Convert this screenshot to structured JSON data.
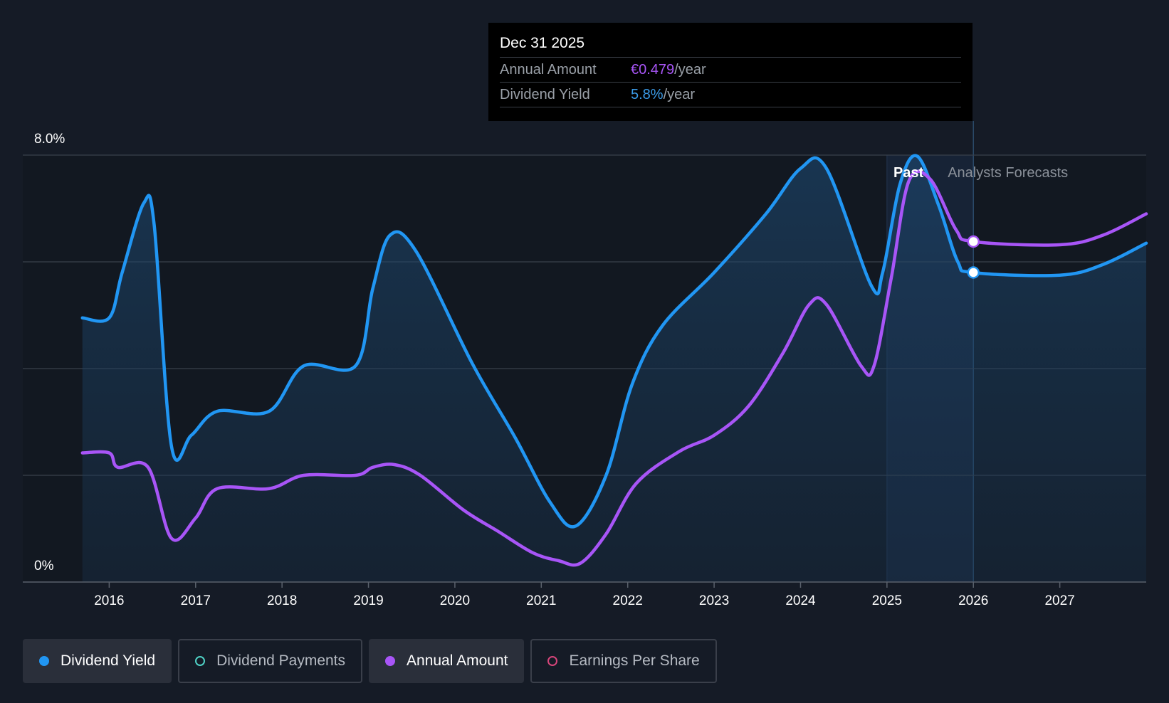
{
  "tooltip": {
    "date": "Dec 31 2025",
    "rows": [
      {
        "label": "Annual Amount",
        "value": "€0.479",
        "suffix": "/year",
        "color": "#a855f7"
      },
      {
        "label": "Dividend Yield",
        "value": "5.8%",
        "suffix": "/year",
        "color": "#3b9be8"
      }
    ]
  },
  "regions": {
    "past": "Past",
    "forecast": "Analysts Forecasts"
  },
  "legend": [
    {
      "label": "Dividend Yield",
      "color": "#2196f3",
      "active": true,
      "filled": true
    },
    {
      "label": "Dividend Payments",
      "color": "#4fd1c5",
      "active": false,
      "filled": false
    },
    {
      "label": "Annual Amount",
      "color": "#a855f7",
      "active": true,
      "filled": true
    },
    {
      "label": "Earnings Per Share",
      "color": "#d6457a",
      "active": false,
      "filled": false
    }
  ],
  "chart_data": {
    "type": "line",
    "x_ticks": [
      "2016",
      "2017",
      "2018",
      "2019",
      "2020",
      "2021",
      "2022",
      "2023",
      "2024",
      "2025",
      "2026",
      "2027"
    ],
    "y_tick_labels": [
      "8.0%",
      "0%"
    ],
    "ylim": [
      0,
      8
    ],
    "xlim": [
      2015.0,
      2028.0
    ],
    "past_forecast_boundary": 2025.0,
    "highlight_x": 2026.0,
    "grid": true,
    "legend_position": "bottom",
    "series": [
      {
        "name": "Dividend Yield",
        "color": "#2196f3",
        "area": true,
        "points": [
          [
            2015.69,
            4.95
          ],
          [
            2016.0,
            4.95
          ],
          [
            2016.15,
            5.8
          ],
          [
            2016.4,
            7.1
          ],
          [
            2016.52,
            6.7
          ],
          [
            2016.72,
            2.55
          ],
          [
            2016.95,
            2.75
          ],
          [
            2017.25,
            3.2
          ],
          [
            2017.85,
            3.2
          ],
          [
            2018.25,
            4.05
          ],
          [
            2018.85,
            4.05
          ],
          [
            2019.05,
            5.5
          ],
          [
            2019.25,
            6.5
          ],
          [
            2019.55,
            6.2
          ],
          [
            2020.2,
            4.1
          ],
          [
            2020.7,
            2.7
          ],
          [
            2021.1,
            1.5
          ],
          [
            2021.4,
            1.05
          ],
          [
            2021.75,
            2.0
          ],
          [
            2022.05,
            3.7
          ],
          [
            2022.4,
            4.8
          ],
          [
            2023.0,
            5.8
          ],
          [
            2023.6,
            6.9
          ],
          [
            2024.0,
            7.75
          ],
          [
            2024.3,
            7.75
          ],
          [
            2024.82,
            5.55
          ],
          [
            2024.95,
            5.8
          ],
          [
            2025.15,
            7.45
          ],
          [
            2025.35,
            7.98
          ],
          [
            2025.6,
            7.05
          ],
          [
            2025.82,
            6.0
          ],
          [
            2026.0,
            5.8
          ],
          [
            2027.0,
            5.75
          ],
          [
            2027.5,
            5.95
          ],
          [
            2028.0,
            6.35
          ]
        ]
      },
      {
        "name": "Annual Amount",
        "color": "#a855f7",
        "area": false,
        "points": [
          [
            2015.69,
            2.42
          ],
          [
            2016.0,
            2.42
          ],
          [
            2016.1,
            2.15
          ],
          [
            2016.45,
            2.15
          ],
          [
            2016.72,
            0.82
          ],
          [
            2017.0,
            1.2
          ],
          [
            2017.25,
            1.75
          ],
          [
            2017.85,
            1.75
          ],
          [
            2018.25,
            2.0
          ],
          [
            2018.85,
            2.0
          ],
          [
            2019.05,
            2.15
          ],
          [
            2019.3,
            2.2
          ],
          [
            2019.6,
            2.0
          ],
          [
            2020.1,
            1.35
          ],
          [
            2020.5,
            0.95
          ],
          [
            2020.9,
            0.55
          ],
          [
            2021.2,
            0.4
          ],
          [
            2021.45,
            0.35
          ],
          [
            2021.75,
            0.9
          ],
          [
            2022.1,
            1.85
          ],
          [
            2022.6,
            2.45
          ],
          [
            2023.0,
            2.75
          ],
          [
            2023.4,
            3.3
          ],
          [
            2023.8,
            4.3
          ],
          [
            2024.1,
            5.2
          ],
          [
            2024.3,
            5.2
          ],
          [
            2024.7,
            4.05
          ],
          [
            2024.85,
            4.05
          ],
          [
            2025.05,
            5.7
          ],
          [
            2025.25,
            7.5
          ],
          [
            2025.5,
            7.55
          ],
          [
            2025.8,
            6.6
          ],
          [
            2026.0,
            6.38
          ],
          [
            2027.0,
            6.32
          ],
          [
            2027.5,
            6.5
          ],
          [
            2028.0,
            6.9
          ]
        ]
      }
    ]
  }
}
